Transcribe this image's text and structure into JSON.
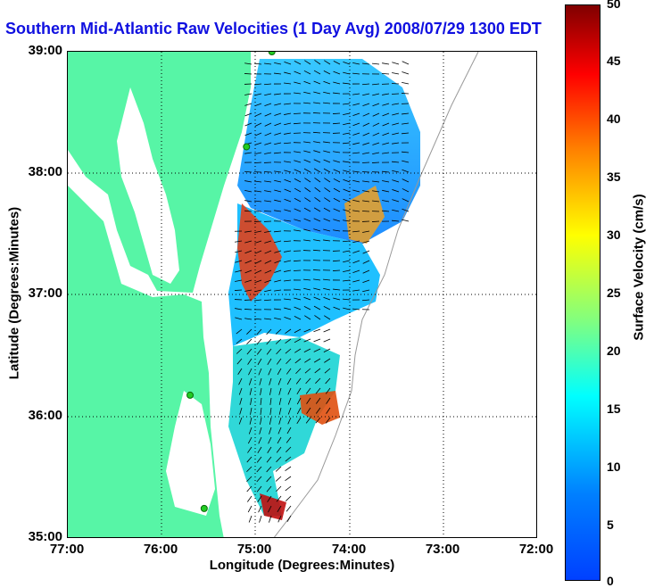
{
  "title": "Southern Mid-Atlantic Raw Velocities (1 Day Avg) 2008/07/29 1300 EDT",
  "axes": {
    "xlabel": "Longitude (Degrees:Minutes)",
    "ylabel": "Latitude (Degrees:Minutes)",
    "xticks": [
      "77:00",
      "76:00",
      "75:00",
      "74:00",
      "73:00",
      "72:00"
    ],
    "yticks": [
      "39:00",
      "38:00",
      "37:00",
      "36:00",
      "35:00"
    ],
    "xlim": [
      -77,
      -72
    ],
    "ylim": [
      35,
      39
    ],
    "grid": "dotted"
  },
  "colorbar": {
    "label": "Surface Velocity (cm/s)",
    "ticks": [
      "50",
      "45",
      "40",
      "35",
      "30",
      "25",
      "20",
      "15",
      "10",
      "5",
      "0"
    ],
    "range": [
      0,
      50
    ],
    "colormap": "jet"
  },
  "colors": {
    "land": "#57f5a6",
    "water": "#ffffff",
    "title": "#1010e0",
    "station": "#22cc22"
  },
  "stations": [
    {
      "lon": -74.83,
      "lat": 39.0
    },
    {
      "lon": -75.1,
      "lat": 38.22
    },
    {
      "lon": -75.7,
      "lat": 36.18
    },
    {
      "lon": -75.55,
      "lat": 35.25
    }
  ]
}
